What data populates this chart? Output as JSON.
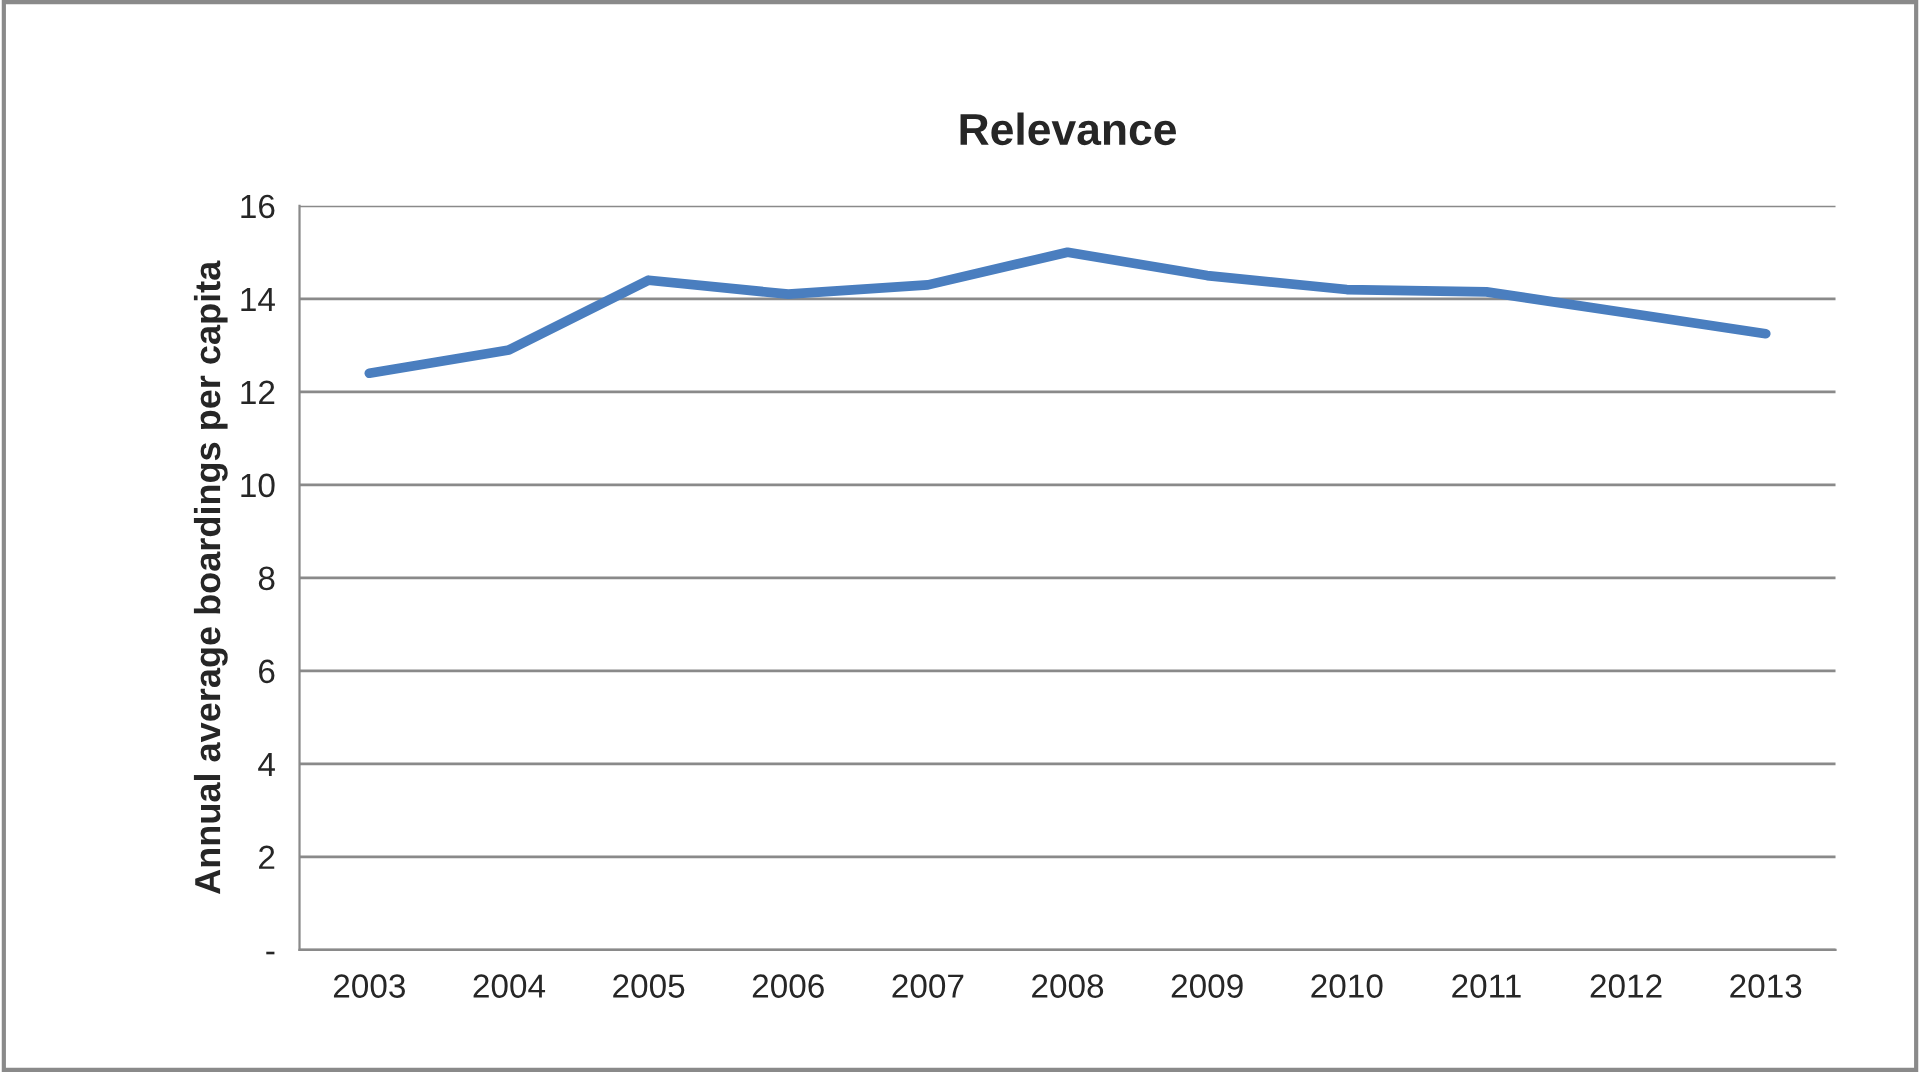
{
  "chart_data": {
    "type": "line",
    "title": "Relevance",
    "ylabel": "Annual average boardings per capita",
    "categories": [
      "2003",
      "2004",
      "2005",
      "2006",
      "2007",
      "2008",
      "2009",
      "2010",
      "2011",
      "2012",
      "2013"
    ],
    "series": [
      {
        "color": "#4a7ebf",
        "values": [
          12.4,
          12.9,
          14.4,
          14.1,
          14.3,
          15.0,
          14.5,
          14.2,
          14.15,
          13.7,
          13.25
        ]
      }
    ],
    "ylim": [
      0,
      16
    ],
    "yticks": [
      {
        "value": 0,
        "label": "-"
      },
      2,
      4,
      6,
      8,
      10,
      12,
      14,
      16
    ],
    "grid": "y",
    "marker": "none",
    "line_style": "solid"
  }
}
